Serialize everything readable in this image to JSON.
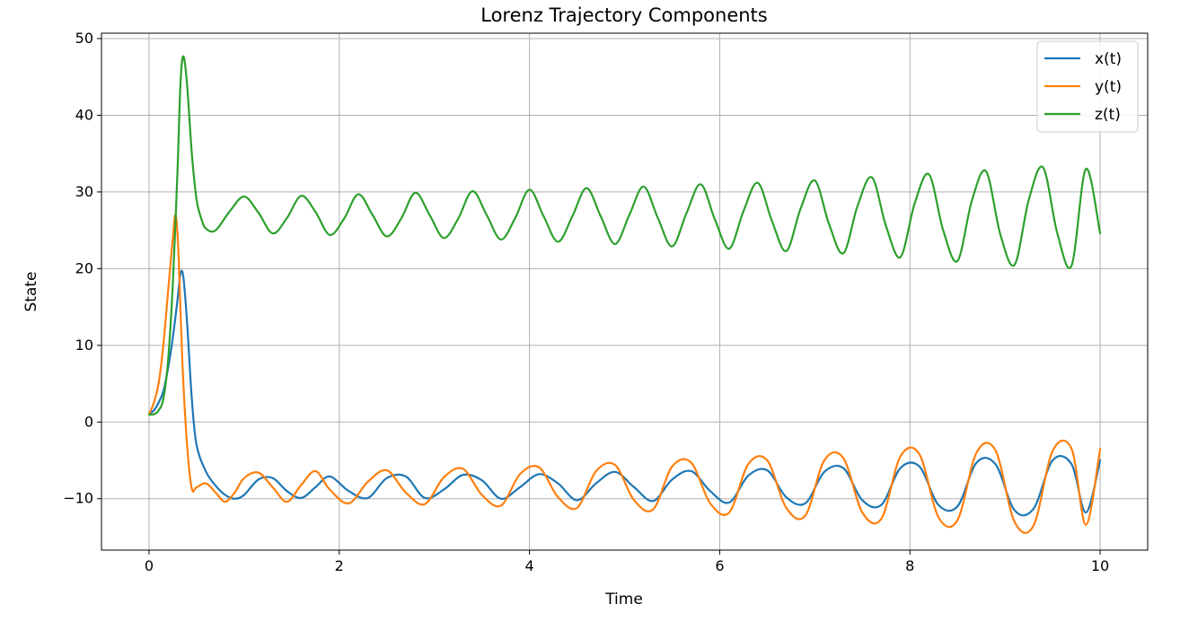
{
  "chart_data": {
    "type": "line",
    "title": "Lorenz Trajectory Components",
    "xlabel": "Time",
    "ylabel": "State",
    "xlim": [
      -0.5,
      10.5
    ],
    "ylim": [
      -16.7,
      50.7
    ],
    "xticks": [
      0,
      2,
      4,
      6,
      8,
      10
    ],
    "yticks": [
      -10,
      0,
      10,
      20,
      30,
      40,
      50
    ],
    "xtick_labels": [
      "0",
      "2",
      "4",
      "6",
      "8",
      "10"
    ],
    "ytick_labels": [
      "−10",
      "0",
      "10",
      "20",
      "30",
      "40",
      "50"
    ],
    "grid": true,
    "legend_position": "top-right",
    "series": [
      {
        "name": "x(t)",
        "color": "#1f77b4",
        "x": [
          0,
          0.05,
          0.1,
          0.15,
          0.2,
          0.25,
          0.3,
          0.33,
          0.36,
          0.4,
          0.45,
          0.5,
          0.6,
          0.7,
          0.8,
          0.9,
          1.0,
          1.15,
          1.3,
          1.45,
          1.6,
          1.75,
          1.9,
          2.1,
          2.3,
          2.5,
          2.7,
          2.9,
          3.1,
          3.3,
          3.5,
          3.7,
          3.9,
          4.1,
          4.3,
          4.5,
          4.7,
          4.9,
          5.1,
          5.3,
          5.5,
          5.7,
          5.9,
          6.1,
          6.3,
          6.5,
          6.7,
          6.9,
          7.1,
          7.3,
          7.5,
          7.7,
          7.9,
          8.1,
          8.3,
          8.5,
          8.7,
          8.9,
          9.1,
          9.3,
          9.5,
          9.7,
          9.85,
          10.0
        ],
        "y": [
          1,
          1.5,
          2.5,
          4,
          7,
          11,
          16,
          19.3,
          19,
          13,
          3,
          -3,
          -6.5,
          -8.3,
          -9.5,
          -10,
          -9.5,
          -7.5,
          -7.3,
          -9,
          -9.9,
          -8.5,
          -7.1,
          -9,
          -9.9,
          -7.3,
          -7.1,
          -9.9,
          -8.8,
          -6.9,
          -7.6,
          -10,
          -8.5,
          -6.8,
          -8,
          -10.2,
          -8,
          -6.5,
          -8.5,
          -10.3,
          -7.5,
          -6.4,
          -9,
          -10.5,
          -7,
          -6.3,
          -9.8,
          -10.6,
          -6.5,
          -6,
          -10.2,
          -10.8,
          -6,
          -5.8,
          -10.8,
          -11,
          -5.3,
          -5.5,
          -11.5,
          -11.3,
          -5.0,
          -5.5,
          -11.8,
          -5
        ]
      },
      {
        "name": "y(t)",
        "color": "#ff7f0e",
        "x": [
          0,
          0.05,
          0.1,
          0.15,
          0.2,
          0.25,
          0.28,
          0.31,
          0.35,
          0.4,
          0.45,
          0.5,
          0.6,
          0.7,
          0.8,
          0.9,
          1.0,
          1.15,
          1.3,
          1.45,
          1.6,
          1.75,
          1.9,
          2.1,
          2.3,
          2.5,
          2.7,
          2.9,
          3.1,
          3.3,
          3.5,
          3.7,
          3.9,
          4.1,
          4.3,
          4.5,
          4.7,
          4.9,
          5.1,
          5.3,
          5.5,
          5.7,
          5.9,
          6.1,
          6.3,
          6.5,
          6.7,
          6.9,
          7.1,
          7.3,
          7.5,
          7.7,
          7.9,
          8.1,
          8.3,
          8.5,
          8.7,
          8.9,
          9.1,
          9.3,
          9.5,
          9.7,
          9.85,
          10.0
        ],
        "y": [
          1,
          2.5,
          5,
          10,
          17,
          24,
          27,
          22,
          8,
          -3,
          -8.7,
          -8.5,
          -8,
          -9.2,
          -10.4,
          -9.2,
          -7.3,
          -6.6,
          -8.5,
          -10.4,
          -8.2,
          -6.4,
          -8.8,
          -10.6,
          -7.8,
          -6.3,
          -9.2,
          -10.7,
          -7.2,
          -6.1,
          -9.5,
          -10.9,
          -6.8,
          -5.9,
          -9.8,
          -11.2,
          -6.4,
          -5.6,
          -10.2,
          -11.4,
          -5.8,
          -5.3,
          -10.6,
          -11.8,
          -5.5,
          -5.0,
          -11.2,
          -12.2,
          -5.0,
          -4.7,
          -11.8,
          -12.6,
          -4.5,
          -4.2,
          -12.4,
          -12.8,
          -4.0,
          -3.7,
          -13.0,
          -13.5,
          -3.8,
          -3.5,
          -13.4,
          -3.5
        ]
      },
      {
        "name": "z(t)",
        "color": "#2ca02c",
        "x": [
          0,
          0.05,
          0.1,
          0.15,
          0.2,
          0.25,
          0.3,
          0.33,
          0.36,
          0.4,
          0.45,
          0.5,
          0.55,
          0.6,
          0.7,
          0.85,
          1.0,
          1.15,
          1.3,
          1.45,
          1.6,
          1.75,
          1.9,
          2.05,
          2.2,
          2.35,
          2.5,
          2.65,
          2.8,
          2.95,
          3.1,
          3.25,
          3.4,
          3.55,
          3.7,
          3.85,
          4.0,
          4.15,
          4.3,
          4.45,
          4.6,
          4.75,
          4.9,
          5.05,
          5.2,
          5.35,
          5.5,
          5.65,
          5.8,
          5.95,
          6.1,
          6.25,
          6.4,
          6.55,
          6.7,
          6.85,
          7.0,
          7.15,
          7.3,
          7.45,
          7.6,
          7.75,
          7.9,
          8.05,
          8.2,
          8.35,
          8.5,
          8.65,
          8.8,
          8.95,
          9.1,
          9.25,
          9.4,
          9.55,
          9.7,
          9.85,
          10.0
        ],
        "y": [
          1,
          1,
          1.5,
          3,
          8,
          18,
          33,
          44,
          47.7,
          44,
          35,
          29,
          26.5,
          25.2,
          25,
          27.5,
          29.4,
          27.3,
          24.6,
          26.6,
          29.5,
          27.4,
          24.4,
          26.5,
          29.7,
          27,
          24.2,
          26.5,
          29.9,
          27,
          24.0,
          26.5,
          30.1,
          27,
          23.8,
          26.6,
          30.3,
          26.8,
          23.5,
          26.8,
          30.5,
          26.8,
          23.2,
          27,
          30.7,
          26.6,
          22.9,
          27.2,
          31.0,
          26.4,
          22.6,
          27.5,
          31.2,
          26.2,
          22.3,
          27.8,
          31.5,
          25.8,
          22.0,
          28.2,
          31.9,
          25.5,
          21.5,
          28.5,
          32.3,
          25.0,
          21.0,
          28.8,
          32.7,
          24.5,
          20.5,
          29,
          33.2,
          24.6,
          20.4,
          33.0,
          24.6
        ]
      }
    ]
  }
}
